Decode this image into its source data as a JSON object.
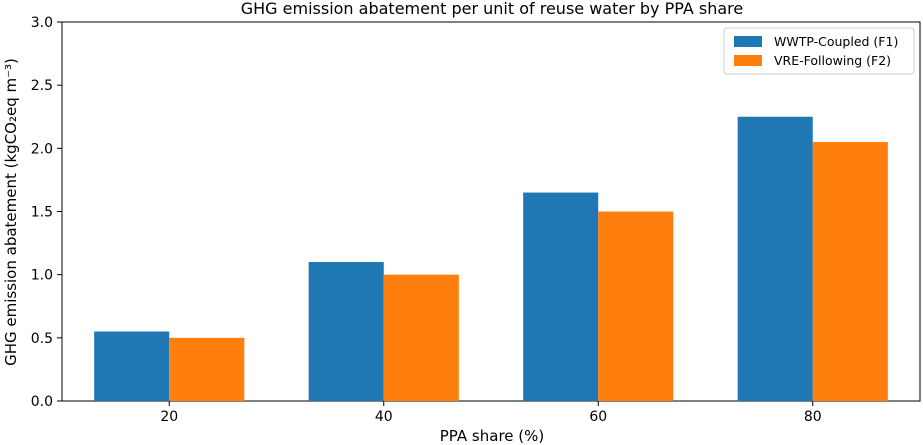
{
  "chart_data": {
    "type": "bar",
    "title": "GHG emission abatement per unit of reuse water by PPA share",
    "xlabel": "PPA share (%)",
    "ylabel": "GHG emission abatement (kgCO₂eq m⁻³)",
    "categories": [
      "20",
      "40",
      "60",
      "80"
    ],
    "series": [
      {
        "name": "WWTP-Coupled (F1)",
        "values": [
          0.55,
          1.1,
          1.65,
          2.25
        ],
        "color": "#1f77b4"
      },
      {
        "name": "VRE-Following (F2)",
        "values": [
          0.5,
          1.0,
          1.5,
          2.05
        ],
        "color": "#ff7f0e"
      }
    ],
    "ylim": [
      0,
      3.0
    ],
    "yticks": [
      "0.0",
      "0.5",
      "1.0",
      "1.5",
      "2.0",
      "2.5",
      "3.0"
    ],
    "grid": false,
    "legend_position": "top-right"
  }
}
